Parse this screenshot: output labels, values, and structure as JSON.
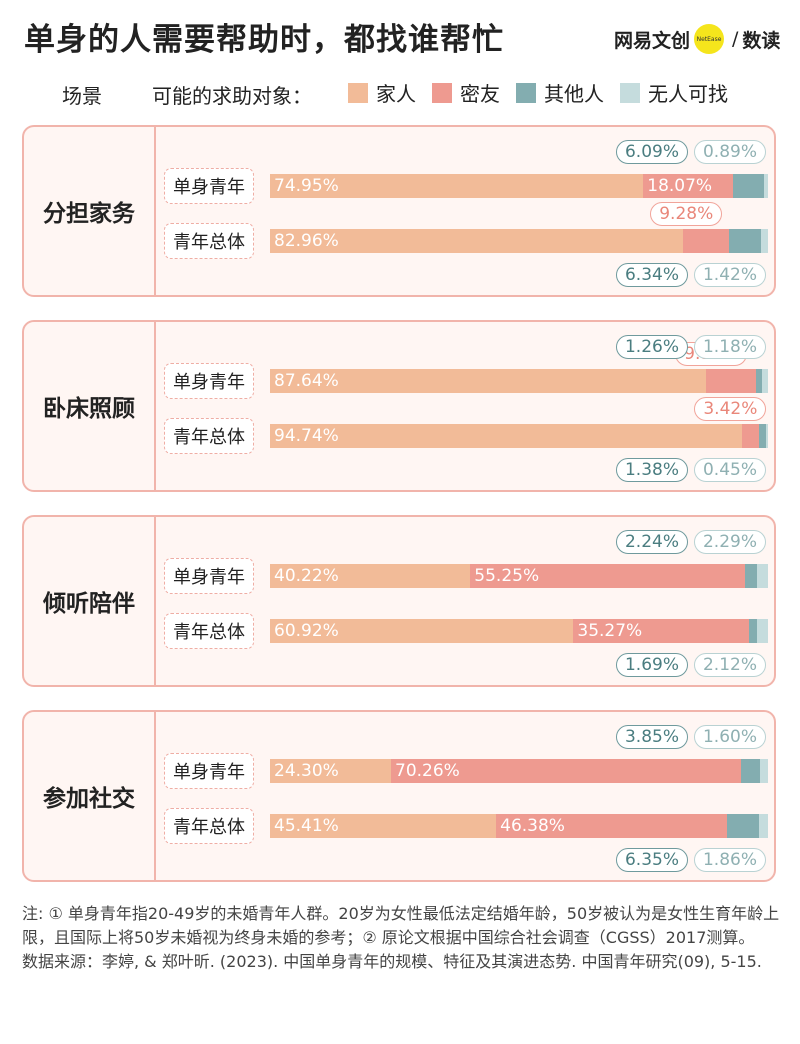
{
  "header": {
    "title": "单身的人需要帮助时，都找谁帮忙",
    "brand_main": "网易文创",
    "brand_dot": "NetEase",
    "brand_sep": "/",
    "brand_sub": "数读"
  },
  "legend": {
    "scene_label": "场景",
    "title": "可能的求助对象：",
    "items": [
      {
        "label": "家人",
        "color": "#f2bb98"
      },
      {
        "label": "密友",
        "color": "#ee9a90"
      },
      {
        "label": "其他人",
        "color": "#83adb0"
      },
      {
        "label": "无人可找",
        "color": "#c5dcdd"
      }
    ]
  },
  "chart_data": {
    "type": "bar",
    "stacked": true,
    "orientation": "horizontal",
    "title": "单身的人需要帮助时，都找谁帮忙",
    "series_names": [
      "家人",
      "密友",
      "其他人",
      "无人可找"
    ],
    "groups": [
      {
        "scene": "分担家务",
        "rows": [
          {
            "label": "单身青年",
            "values": [
              74.95,
              18.07,
              6.09,
              0.89
            ]
          },
          {
            "label": "青年总体",
            "values": [
              82.96,
              9.28,
              6.34,
              1.42
            ]
          }
        ]
      },
      {
        "scene": "卧床照顾",
        "rows": [
          {
            "label": "单身青年",
            "values": [
              87.64,
              9.91,
              1.26,
              1.18
            ]
          },
          {
            "label": "青年总体",
            "values": [
              94.74,
              3.42,
              1.38,
              0.45
            ]
          }
        ]
      },
      {
        "scene": "倾听陪伴",
        "rows": [
          {
            "label": "单身青年",
            "values": [
              40.22,
              55.25,
              2.24,
              2.29
            ]
          },
          {
            "label": "青年总体",
            "values": [
              60.92,
              35.27,
              1.69,
              2.12
            ]
          }
        ]
      },
      {
        "scene": "参加社交",
        "rows": [
          {
            "label": "单身青年",
            "values": [
              24.3,
              70.26,
              3.85,
              1.6
            ]
          },
          {
            "label": "青年总体",
            "values": [
              45.41,
              46.38,
              6.35,
              1.86
            ]
          }
        ]
      }
    ],
    "value_labels": [
      [
        [
          "74.95%",
          "18.07%",
          "6.09%",
          "0.89%"
        ],
        [
          "82.96%",
          "9.28%",
          "6.34%",
          "1.42%"
        ]
      ],
      [
        [
          "87.64%",
          "9.91%",
          "1.26%",
          "1.18%"
        ],
        [
          "94.74%",
          "3.42%",
          "1.38%",
          "0.45%"
        ]
      ],
      [
        [
          "40.22%",
          "55.25%",
          "2.24%",
          "2.29%"
        ],
        [
          "60.92%",
          "35.27%",
          "1.69%",
          "2.12%"
        ]
      ],
      [
        [
          "24.30%",
          "70.26%",
          "3.85%",
          "1.60%"
        ],
        [
          "45.41%",
          "46.38%",
          "6.35%",
          "1.86%"
        ]
      ]
    ]
  },
  "notes": {
    "line1": "注: ① 单身青年指20-49岁的未婚青年人群。20岁为女性最低法定结婚年龄，50岁被认为是女性生育年龄上限，且国际上将50岁未婚视为终身未婚的参考；② 原论文根据中国综合社会调查（CGSS）2017测算。",
    "line2": "数据来源：李婷, & 郑叶昕. (2023). 中国单身青年的规模、特征及其演进态势. 中国青年研究(09), 5-15."
  }
}
